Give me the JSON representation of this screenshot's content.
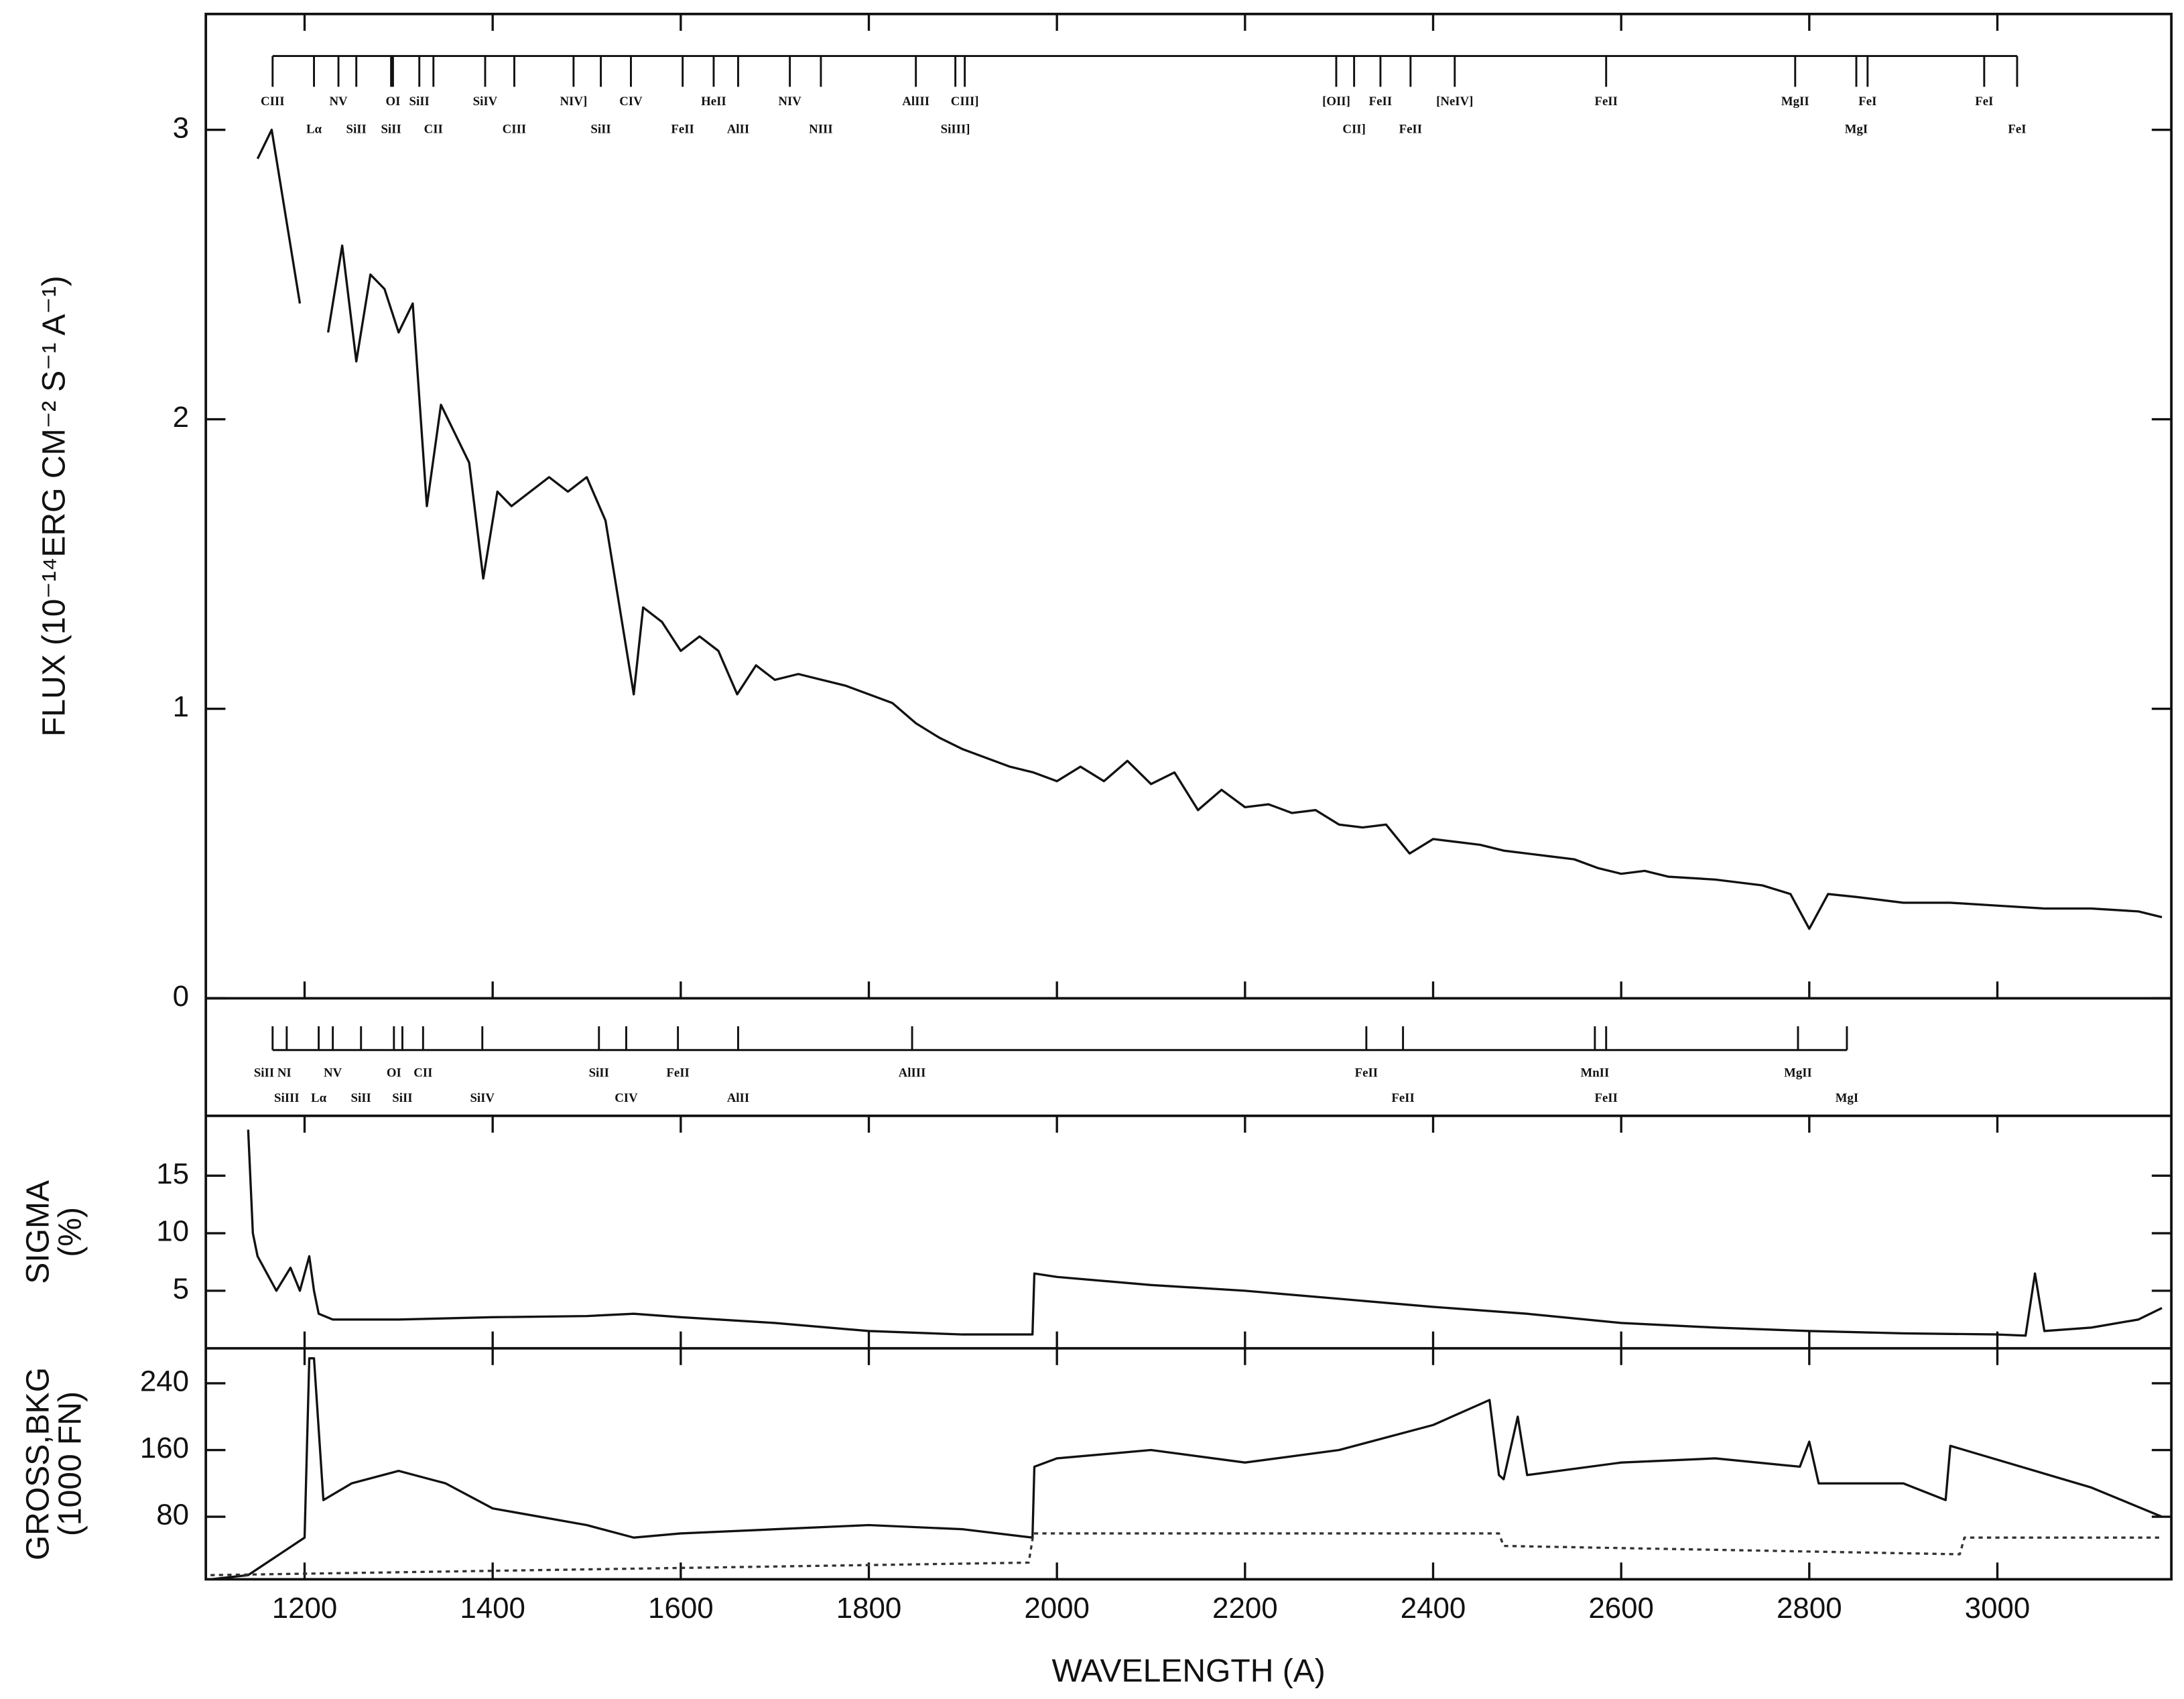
{
  "chart_data": [
    {
      "type": "line",
      "ylabel": [
        "FLUX (10⁻¹⁴ERG CM⁻² S⁻¹ A⁻¹)"
      ],
      "ylim": [
        0,
        3.4
      ],
      "yticks": [
        0,
        1,
        2,
        3
      ],
      "series": [
        {
          "color": "#111111",
          "dashed": false,
          "x": [
            1150,
            1165,
            1180,
            1195,
            1210,
            1225,
            1240,
            1255,
            1270,
            1285,
            1300,
            1315,
            1330,
            1345,
            1360,
            1375,
            1390,
            1405,
            1420,
            1440,
            1460,
            1480,
            1500,
            1520,
            1540,
            1550,
            1560,
            1580,
            1600,
            1620,
            1640,
            1660,
            1680,
            1700,
            1725,
            1750,
            1775,
            1800,
            1825,
            1850,
            1875,
            1900,
            1925,
            1950,
            1975,
            2000,
            2025,
            2050,
            2075,
            2100,
            2125,
            2150,
            2175,
            2200,
            2225,
            2250,
            2275,
            2300,
            2325,
            2350,
            2375,
            2400,
            2425,
            2450,
            2475,
            2500,
            2525,
            2550,
            2575,
            2600,
            2625,
            2650,
            2700,
            2750,
            2780,
            2800,
            2820,
            2850,
            2900,
            2950,
            3000,
            3050,
            3100,
            3150,
            3175
          ],
          "values": [
            2.9,
            3.0,
            2.7,
            2.4,
            null,
            2.3,
            2.6,
            2.2,
            2.5,
            2.45,
            2.3,
            2.4,
            1.7,
            2.05,
            1.95,
            1.85,
            1.45,
            1.75,
            1.7,
            1.75,
            1.8,
            1.75,
            1.8,
            1.65,
            1.25,
            1.05,
            1.35,
            1.3,
            1.2,
            1.25,
            1.2,
            1.05,
            1.15,
            1.1,
            1.12,
            1.1,
            1.08,
            1.05,
            1.02,
            0.95,
            0.9,
            0.86,
            0.83,
            0.8,
            0.78,
            0.75,
            0.8,
            0.75,
            0.82,
            0.74,
            0.78,
            0.65,
            0.72,
            0.66,
            0.67,
            0.64,
            0.65,
            0.6,
            0.59,
            0.6,
            0.5,
            0.55,
            0.54,
            0.53,
            0.51,
            0.5,
            0.49,
            0.48,
            0.45,
            0.43,
            0.44,
            0.42,
            0.41,
            0.39,
            0.36,
            0.24,
            0.36,
            0.35,
            0.33,
            0.33,
            0.32,
            0.31,
            0.31,
            0.3,
            0.28
          ]
        }
      ]
    },
    {
      "type": "line",
      "ylabel": [
        "SIGMA",
        "(%)"
      ],
      "ylim": [
        0,
        20.2
      ],
      "yticks": [
        5,
        10,
        15
      ],
      "series": [
        {
          "color": "#111111",
          "dashed": false,
          "x": [
            1140,
            1145,
            1150,
            1170,
            1185,
            1195,
            1205,
            1210,
            1215,
            1230,
            1300,
            1400,
            1500,
            1550,
            1600,
            1700,
            1800,
            1900,
            1974,
            1976,
            2000,
            2100,
            2200,
            2300,
            2400,
            2500,
            2600,
            2700,
            2800,
            2900,
            3000,
            3030,
            3040,
            3050,
            3100,
            3150,
            3175
          ],
          "values": [
            19,
            10,
            8,
            5,
            7,
            5,
            8,
            5,
            3,
            2.5,
            2.5,
            2.7,
            2.8,
            3,
            2.7,
            2.2,
            1.5,
            1.2,
            1.2,
            6.5,
            6.2,
            5.5,
            5,
            4.3,
            3.6,
            3,
            2.2,
            1.8,
            1.5,
            1.3,
            1.2,
            1.1,
            6.5,
            1.5,
            1.8,
            2.5,
            3.5
          ]
        }
      ]
    },
    {
      "type": "line",
      "ylabel": [
        "GROSS,BKG",
        "(1000 FN)"
      ],
      "xlabel": "WAVELENGTH (A)",
      "xlim": [
        1095,
        3185
      ],
      "xticks": [
        1200,
        1400,
        1600,
        1800,
        2000,
        2200,
        2400,
        2600,
        2800,
        3000
      ],
      "ylim": [
        5,
        282
      ],
      "yticks": [
        80,
        160,
        240
      ],
      "series": [
        {
          "color": "#111111",
          "dashed": false,
          "x": [
            1100,
            1140,
            1180,
            1200,
            1205,
            1210,
            1220,
            1250,
            1300,
            1350,
            1400,
            1500,
            1550,
            1600,
            1700,
            1800,
            1900,
            1974,
            1976,
            2000,
            2100,
            2200,
            2300,
            2400,
            2460,
            2470,
            2475,
            2490,
            2500,
            2600,
            2700,
            2790,
            2800,
            2810,
            2900,
            2945,
            2950,
            3100,
            3175
          ],
          "values": [
            5,
            10,
            40,
            55,
            270,
            270,
            100,
            120,
            135,
            120,
            90,
            70,
            55,
            60,
            65,
            70,
            65,
            55,
            140,
            150,
            160,
            145,
            160,
            190,
            220,
            130,
            125,
            200,
            130,
            145,
            150,
            140,
            170,
            120,
            120,
            100,
            165,
            115,
            80
          ]
        },
        {
          "color": "#333333",
          "dashed": true,
          "x": [
            1100,
            1970,
            1975,
            2470,
            2475,
            2960,
            2965,
            3175
          ],
          "values": [
            10,
            25,
            60,
            60,
            45,
            35,
            55,
            55
          ]
        }
      ]
    }
  ],
  "line_ids": {
    "upper": [
      {
        "label": "CIII",
        "wavelength": 1166,
        "row": 1
      },
      {
        "label": "NV",
        "wavelength": 1236,
        "row": 1
      },
      {
        "label": "OI",
        "wavelength": 1294,
        "row": 1
      },
      {
        "label": "SiII",
        "wavelength": 1322,
        "row": 1
      },
      {
        "label": "SiIV",
        "wavelength": 1392,
        "row": 1
      },
      {
        "label": "NIV]",
        "wavelength": 1486,
        "row": 1
      },
      {
        "label": "CIV",
        "wavelength": 1547,
        "row": 1
      },
      {
        "label": "HeII",
        "wavelength": 1635,
        "row": 1
      },
      {
        "label": "NIV",
        "wavelength": 1716,
        "row": 1
      },
      {
        "label": "AlIII",
        "wavelength": 1850,
        "row": 1
      },
      {
        "label": "CIII]",
        "wavelength": 1902,
        "row": 1
      },
      {
        "label": "[OII]",
        "wavelength": 2297,
        "row": 1
      },
      {
        "label": "FeII",
        "wavelength": 2344,
        "row": 1
      },
      {
        "label": "[NeIV]",
        "wavelength": 2423,
        "row": 1
      },
      {
        "label": "FeII",
        "wavelength": 2584,
        "row": 1
      },
      {
        "label": "MgII",
        "wavelength": 2785,
        "row": 1
      },
      {
        "label": "FeI",
        "wavelength": 2862,
        "row": 1
      },
      {
        "label": "FeI",
        "wavelength": 2986,
        "row": 1
      },
      {
        "label": "Lα",
        "wavelength": 1210,
        "row": 2
      },
      {
        "label": "SiII",
        "wavelength": 1255,
        "row": 2
      },
      {
        "label": "SiII",
        "wavelength": 1292,
        "row": 2
      },
      {
        "label": "CII",
        "wavelength": 1337,
        "row": 2
      },
      {
        "label": "CIII",
        "wavelength": 1423,
        "row": 2
      },
      {
        "label": "SiII",
        "wavelength": 1515,
        "row": 2
      },
      {
        "label": "FeII",
        "wavelength": 1602,
        "row": 2
      },
      {
        "label": "AlII",
        "wavelength": 1661,
        "row": 2
      },
      {
        "label": "NIII",
        "wavelength": 1749,
        "row": 2
      },
      {
        "label": "SiIII]",
        "wavelength": 1892,
        "row": 2
      },
      {
        "label": "CII]",
        "wavelength": 2316,
        "row": 2
      },
      {
        "label": "FeII",
        "wavelength": 2376,
        "row": 2
      },
      {
        "label": "MgI",
        "wavelength": 2850,
        "row": 2
      },
      {
        "label": "FeI",
        "wavelength": 3021,
        "row": 2
      }
    ],
    "lower": [
      {
        "label": "SiII NI",
        "wavelength": 1166,
        "row": 1
      },
      {
        "label": "NV",
        "wavelength": 1230,
        "row": 1
      },
      {
        "label": "OI",
        "wavelength": 1295,
        "row": 1
      },
      {
        "label": "CII",
        "wavelength": 1326,
        "row": 1
      },
      {
        "label": "SiII",
        "wavelength": 1513,
        "row": 1
      },
      {
        "label": "FeII",
        "wavelength": 1597,
        "row": 1
      },
      {
        "label": "AlIII",
        "wavelength": 1846,
        "row": 1
      },
      {
        "label": "FeII",
        "wavelength": 2329,
        "row": 1
      },
      {
        "label": "MnII",
        "wavelength": 2572,
        "row": 1
      },
      {
        "label": "MgII",
        "wavelength": 2788,
        "row": 1
      },
      {
        "label": "SiIII",
        "wavelength": 1181,
        "row": 2
      },
      {
        "label": "Lα",
        "wavelength": 1215,
        "row": 2
      },
      {
        "label": "SiII",
        "wavelength": 1260,
        "row": 2
      },
      {
        "label": "SiII",
        "wavelength": 1304,
        "row": 2
      },
      {
        "label": "SiIV",
        "wavelength": 1389,
        "row": 2
      },
      {
        "label": "CIV",
        "wavelength": 1542,
        "row": 2
      },
      {
        "label": "AlII",
        "wavelength": 1661,
        "row": 2
      },
      {
        "label": "FeII",
        "wavelength": 2368,
        "row": 2
      },
      {
        "label": "FeII",
        "wavelength": 2584,
        "row": 2
      },
      {
        "label": "MgI",
        "wavelength": 2840,
        "row": 2
      }
    ]
  }
}
